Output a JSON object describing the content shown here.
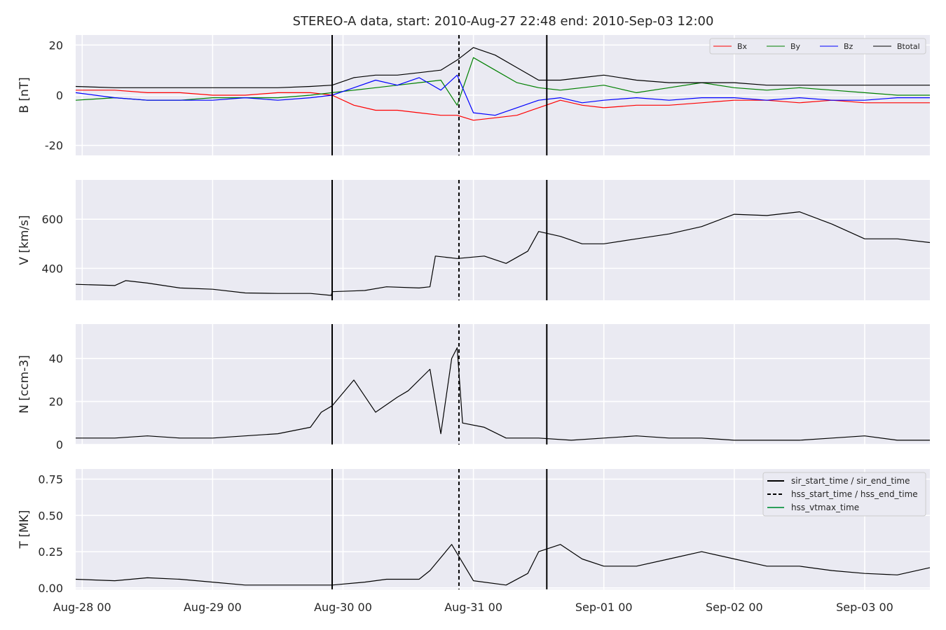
{
  "chart_data": {
    "type": "line",
    "title": "STEREO-A data, start: 2010-Aug-27 22:48  end: 2010-Sep-03 12:00",
    "x_axis": {
      "range": [
        "2010-08-27T22:48",
        "2010-09-03T12:00"
      ],
      "tick_labels": [
        "Aug-28 00",
        "Aug-29 00",
        "Aug-30 00",
        "Aug-31 00",
        "Sep-01 00",
        "Sep-02 00",
        "Sep-03 00"
      ],
      "tick_dates": [
        "2010-08-28T00:00",
        "2010-08-29T00:00",
        "2010-08-30T00:00",
        "2010-08-31T00:00",
        "2010-09-01T00:00",
        "2010-09-02T00:00",
        "2010-09-03T00:00"
      ]
    },
    "grid": true,
    "event_lines": {
      "sir_start_time": "2010-08-29T22:00",
      "hss_start_time": "2010-08-30T21:20",
      "sir_end_time": "2010-08-31T13:30"
    },
    "panels": [
      {
        "ylabel": "B [nT]",
        "ylim": [
          -24,
          24
        ],
        "yticks": [
          -20,
          0,
          20
        ],
        "legend": {
          "placement": "top-right",
          "entries": [
            "Bx",
            "By",
            "Bz",
            "Btotal"
          ]
        },
        "series": [
          {
            "name": "Bx",
            "color": "#ff0000",
            "x": [
              "2010-08-27T22:48",
              "2010-08-28T06:00",
              "2010-08-28T12:00",
              "2010-08-28T18:00",
              "2010-08-29T00:00",
              "2010-08-29T06:00",
              "2010-08-29T12:00",
              "2010-08-29T18:00",
              "2010-08-29T22:00",
              "2010-08-30T02:00",
              "2010-08-30T06:00",
              "2010-08-30T10:00",
              "2010-08-30T14:00",
              "2010-08-30T18:00",
              "2010-08-30T21:00",
              "2010-08-31T00:00",
              "2010-08-31T04:00",
              "2010-08-31T08:00",
              "2010-08-31T12:00",
              "2010-08-31T16:00",
              "2010-08-31T20:00",
              "2010-09-01T00:00",
              "2010-09-01T06:00",
              "2010-09-01T12:00",
              "2010-09-01T18:00",
              "2010-09-02T00:00",
              "2010-09-02T06:00",
              "2010-09-02T12:00",
              "2010-09-02T18:00",
              "2010-09-03T00:00",
              "2010-09-03T06:00",
              "2010-09-03T12:00"
            ],
            "values": [
              2,
              2,
              1,
              1,
              0,
              0,
              1,
              1,
              0,
              -4,
              -6,
              -6,
              -7,
              -8,
              -8,
              -10,
              -9,
              -8,
              -5,
              -2,
              -4,
              -5,
              -4,
              -4,
              -3,
              -2,
              -2,
              -3,
              -2,
              -3,
              -3,
              -3
            ]
          },
          {
            "name": "By",
            "color": "#008000",
            "x": [
              "2010-08-27T22:48",
              "2010-08-28T06:00",
              "2010-08-28T12:00",
              "2010-08-28T18:00",
              "2010-08-29T00:00",
              "2010-08-29T06:00",
              "2010-08-29T12:00",
              "2010-08-29T18:00",
              "2010-08-29T22:00",
              "2010-08-30T02:00",
              "2010-08-30T06:00",
              "2010-08-30T10:00",
              "2010-08-30T14:00",
              "2010-08-30T18:00",
              "2010-08-30T21:00",
              "2010-08-31T00:00",
              "2010-08-31T04:00",
              "2010-08-31T08:00",
              "2010-08-31T12:00",
              "2010-08-31T16:00",
              "2010-08-31T20:00",
              "2010-09-01T00:00",
              "2010-09-01T06:00",
              "2010-09-01T12:00",
              "2010-09-01T18:00",
              "2010-09-02T00:00",
              "2010-09-02T06:00",
              "2010-09-02T12:00",
              "2010-09-02T18:00",
              "2010-09-03T00:00",
              "2010-09-03T06:00",
              "2010-09-03T12:00"
            ],
            "values": [
              -2,
              -1,
              -2,
              -2,
              -1,
              -1,
              -1,
              0,
              1,
              2,
              3,
              4,
              5,
              6,
              -4,
              15,
              10,
              5,
              3,
              2,
              3,
              4,
              1,
              3,
              5,
              3,
              2,
              3,
              2,
              1,
              0,
              0
            ]
          },
          {
            "name": "Bz",
            "color": "#0000ff",
            "x": [
              "2010-08-27T22:48",
              "2010-08-28T06:00",
              "2010-08-28T12:00",
              "2010-08-28T18:00",
              "2010-08-29T00:00",
              "2010-08-29T06:00",
              "2010-08-29T12:00",
              "2010-08-29T18:00",
              "2010-08-29T22:00",
              "2010-08-30T02:00",
              "2010-08-30T06:00",
              "2010-08-30T10:00",
              "2010-08-30T14:00",
              "2010-08-30T18:00",
              "2010-08-30T21:00",
              "2010-08-31T00:00",
              "2010-08-31T04:00",
              "2010-08-31T08:00",
              "2010-08-31T12:00",
              "2010-08-31T16:00",
              "2010-08-31T20:00",
              "2010-09-01T00:00",
              "2010-09-01T06:00",
              "2010-09-01T12:00",
              "2010-09-01T18:00",
              "2010-09-02T00:00",
              "2010-09-02T06:00",
              "2010-09-02T12:00",
              "2010-09-02T18:00",
              "2010-09-03T00:00",
              "2010-09-03T06:00",
              "2010-09-03T12:00"
            ],
            "values": [
              1,
              -1,
              -2,
              -2,
              -2,
              -1,
              -2,
              -1,
              0,
              3,
              6,
              4,
              7,
              2,
              8,
              -7,
              -8,
              -5,
              -2,
              -1,
              -3,
              -2,
              -1,
              -2,
              -1,
              -1,
              -2,
              -1,
              -2,
              -2,
              -1,
              -1
            ]
          },
          {
            "name": "Btotal",
            "color": "#000000",
            "x": [
              "2010-08-27T22:48",
              "2010-08-28T06:00",
              "2010-08-28T12:00",
              "2010-08-28T18:00",
              "2010-08-29T00:00",
              "2010-08-29T06:00",
              "2010-08-29T12:00",
              "2010-08-29T18:00",
              "2010-08-29T22:00",
              "2010-08-30T02:00",
              "2010-08-30T06:00",
              "2010-08-30T10:00",
              "2010-08-30T14:00",
              "2010-08-30T18:00",
              "2010-08-30T21:00",
              "2010-08-31T00:00",
              "2010-08-31T04:00",
              "2010-08-31T08:00",
              "2010-08-31T12:00",
              "2010-08-31T16:00",
              "2010-08-31T20:00",
              "2010-09-01T00:00",
              "2010-09-01T06:00",
              "2010-09-01T12:00",
              "2010-09-01T18:00",
              "2010-09-02T00:00",
              "2010-09-02T06:00",
              "2010-09-02T12:00",
              "2010-09-02T18:00",
              "2010-09-03T00:00",
              "2010-09-03T06:00",
              "2010-09-03T12:00"
            ],
            "values": [
              3.5,
              3,
              3,
              3,
              3,
              3,
              3,
              3.5,
              4,
              7,
              8,
              8,
              9,
              10,
              14,
              19,
              16,
              11,
              6,
              6,
              7,
              8,
              6,
              5,
              5,
              5,
              4,
              4,
              4,
              4,
              4,
              4
            ]
          }
        ]
      },
      {
        "ylabel": "V [km/s]",
        "ylim": [
          270,
          760
        ],
        "yticks": [
          400,
          600
        ],
        "series": [
          {
            "name": "V",
            "color": "#000000",
            "x": [
              "2010-08-27T22:48",
              "2010-08-28T06:00",
              "2010-08-28T08:00",
              "2010-08-28T12:00",
              "2010-08-28T18:00",
              "2010-08-29T00:00",
              "2010-08-29T06:00",
              "2010-08-29T12:00",
              "2010-08-29T18:00",
              "2010-08-29T21:50",
              "2010-08-29T22:00",
              "2010-08-30T04:00",
              "2010-08-30T08:00",
              "2010-08-30T14:00",
              "2010-08-30T16:00",
              "2010-08-30T17:00",
              "2010-08-30T21:00",
              "2010-08-31T02:00",
              "2010-08-31T06:00",
              "2010-08-31T10:00",
              "2010-08-31T12:00",
              "2010-08-31T16:00",
              "2010-08-31T20:00",
              "2010-09-01T00:00",
              "2010-09-01T06:00",
              "2010-09-01T12:00",
              "2010-09-01T18:00",
              "2010-09-02T00:00",
              "2010-09-02T06:00",
              "2010-09-02T12:00",
              "2010-09-02T18:00",
              "2010-09-03T00:00",
              "2010-09-03T06:00",
              "2010-09-03T12:00"
            ],
            "values": [
              335,
              330,
              350,
              340,
              320,
              315,
              300,
              298,
              298,
              290,
              305,
              310,
              325,
              320,
              325,
              450,
              440,
              450,
              420,
              470,
              550,
              530,
              500,
              500,
              520,
              540,
              570,
              620,
              615,
              630,
              580,
              520,
              520,
              505
            ]
          }
        ]
      },
      {
        "ylabel": "N [ccm-3]",
        "ylim": [
          0,
          56
        ],
        "yticks": [
          0,
          20,
          40
        ],
        "series": [
          {
            "name": "N",
            "color": "#000000",
            "x": [
              "2010-08-27T22:48",
              "2010-08-28T06:00",
              "2010-08-28T12:00",
              "2010-08-28T18:00",
              "2010-08-29T00:00",
              "2010-08-29T06:00",
              "2010-08-29T12:00",
              "2010-08-29T18:00",
              "2010-08-29T20:00",
              "2010-08-29T22:00",
              "2010-08-30T02:00",
              "2010-08-30T06:00",
              "2010-08-30T10:00",
              "2010-08-30T12:00",
              "2010-08-30T16:00",
              "2010-08-30T18:00",
              "2010-08-30T20:00",
              "2010-08-30T21:00",
              "2010-08-30T22:00",
              "2010-08-31T02:00",
              "2010-08-31T06:00",
              "2010-08-31T12:00",
              "2010-08-31T18:00",
              "2010-09-01T00:00",
              "2010-09-01T06:00",
              "2010-09-01T12:00",
              "2010-09-01T18:00",
              "2010-09-02T00:00",
              "2010-09-02T06:00",
              "2010-09-02T12:00",
              "2010-09-02T18:00",
              "2010-09-03T00:00",
              "2010-09-03T06:00",
              "2010-09-03T12:00"
            ],
            "values": [
              3,
              3,
              4,
              3,
              3,
              4,
              5,
              8,
              15,
              18,
              30,
              15,
              22,
              25,
              35,
              5,
              40,
              45,
              10,
              8,
              3,
              3,
              2,
              3,
              4,
              3,
              3,
              2,
              2,
              2,
              3,
              4,
              2,
              2
            ]
          }
        ]
      },
      {
        "ylabel": "T [MK]",
        "ylim": [
          -0.01,
          0.82
        ],
        "yticks": [
          0.0,
          0.25,
          0.5,
          0.75
        ],
        "ytick_labels": [
          "0.00",
          "0.25",
          "0.50",
          "0.75"
        ],
        "legend": {
          "placement": "top-right",
          "entries": [
            "sir_start_time / sir_end_time",
            "hss_start_time / hss_end_time",
            "hss_vtmax_time"
          ]
        },
        "series": [
          {
            "name": "T",
            "color": "#000000",
            "x": [
              "2010-08-27T22:48",
              "2010-08-28T06:00",
              "2010-08-28T12:00",
              "2010-08-28T18:00",
              "2010-08-29T00:00",
              "2010-08-29T06:00",
              "2010-08-29T12:00",
              "2010-08-29T18:00",
              "2010-08-29T22:00",
              "2010-08-30T04:00",
              "2010-08-30T08:00",
              "2010-08-30T14:00",
              "2010-08-30T16:00",
              "2010-08-30T20:00",
              "2010-08-31T00:00",
              "2010-08-31T06:00",
              "2010-08-31T10:00",
              "2010-08-31T12:00",
              "2010-08-31T16:00",
              "2010-08-31T20:00",
              "2010-09-01T00:00",
              "2010-09-01T06:00",
              "2010-09-01T12:00",
              "2010-09-01T18:00",
              "2010-09-02T00:00",
              "2010-09-02T06:00",
              "2010-09-02T12:00",
              "2010-09-02T18:00",
              "2010-09-03T00:00",
              "2010-09-03T06:00",
              "2010-09-03T12:00"
            ],
            "values": [
              0.06,
              0.05,
              0.07,
              0.06,
              0.04,
              0.02,
              0.02,
              0.02,
              0.02,
              0.04,
              0.06,
              0.06,
              0.12,
              0.3,
              0.05,
              0.02,
              0.1,
              0.25,
              0.3,
              0.2,
              0.15,
              0.15,
              0.2,
              0.25,
              0.2,
              0.15,
              0.15,
              0.12,
              0.1,
              0.09,
              0.14
            ]
          }
        ]
      }
    ]
  }
}
